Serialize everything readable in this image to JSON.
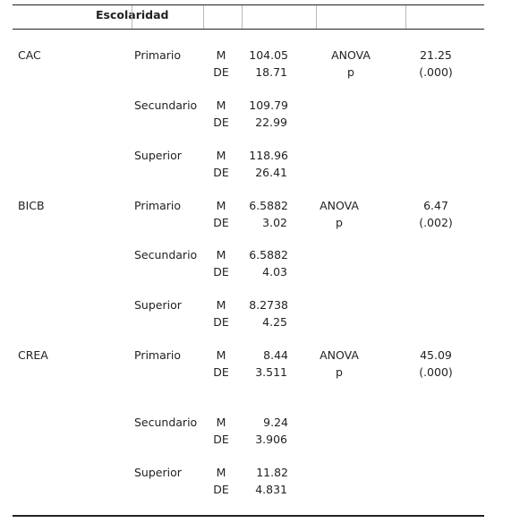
{
  "header": {
    "title": "Escolaridad"
  },
  "groups": [
    {
      "variable": "CAC",
      "test": {
        "labels": [
          "ANOVA",
          "p"
        ],
        "value": "21.25",
        "p": "(.000)"
      },
      "levels": [
        {
          "name": "Primario",
          "stats": [
            "M",
            "DE"
          ],
          "m": "104.05",
          "de": "18.71"
        },
        {
          "name": "Secundario",
          "stats": [
            "M",
            "DE"
          ],
          "m": "109.79",
          "de": "22.99"
        },
        {
          "name": "Superior",
          "stats": [
            "M",
            "DE"
          ],
          "m": "118.96",
          "de": "26.41"
        }
      ]
    },
    {
      "variable": "BICB",
      "test": {
        "labels": [
          "ANOVA",
          "p"
        ],
        "value": "6.47",
        "p": "(.002)"
      },
      "levels": [
        {
          "name": "Primario",
          "stats": [
            "M",
            "DE"
          ],
          "m": "6.5882",
          "de": "3.02"
        },
        {
          "name": "Secundario",
          "stats": [
            "M",
            "DE"
          ],
          "m": "6.5882",
          "de": "4.03"
        },
        {
          "name": "Superior",
          "stats": [
            "M",
            "DE"
          ],
          "m": "8.2738",
          "de": "4.25"
        }
      ]
    },
    {
      "variable": "CREA",
      "test": {
        "labels": [
          "ANOVA",
          "p"
        ],
        "value": "45.09",
        "p": "(.000)"
      },
      "levels": [
        {
          "name": "Primario",
          "stats": [
            "M",
            "DE"
          ],
          "m": "8.44",
          "de": "3.511"
        },
        {
          "name": "Secundario",
          "stats": [
            "M",
            "DE"
          ],
          "m": "9.24",
          "de": "3.906"
        },
        {
          "name": "Superior",
          "stats": [
            "M",
            "DE"
          ],
          "m": "11.82",
          "de": "4.831"
        }
      ]
    }
  ]
}
